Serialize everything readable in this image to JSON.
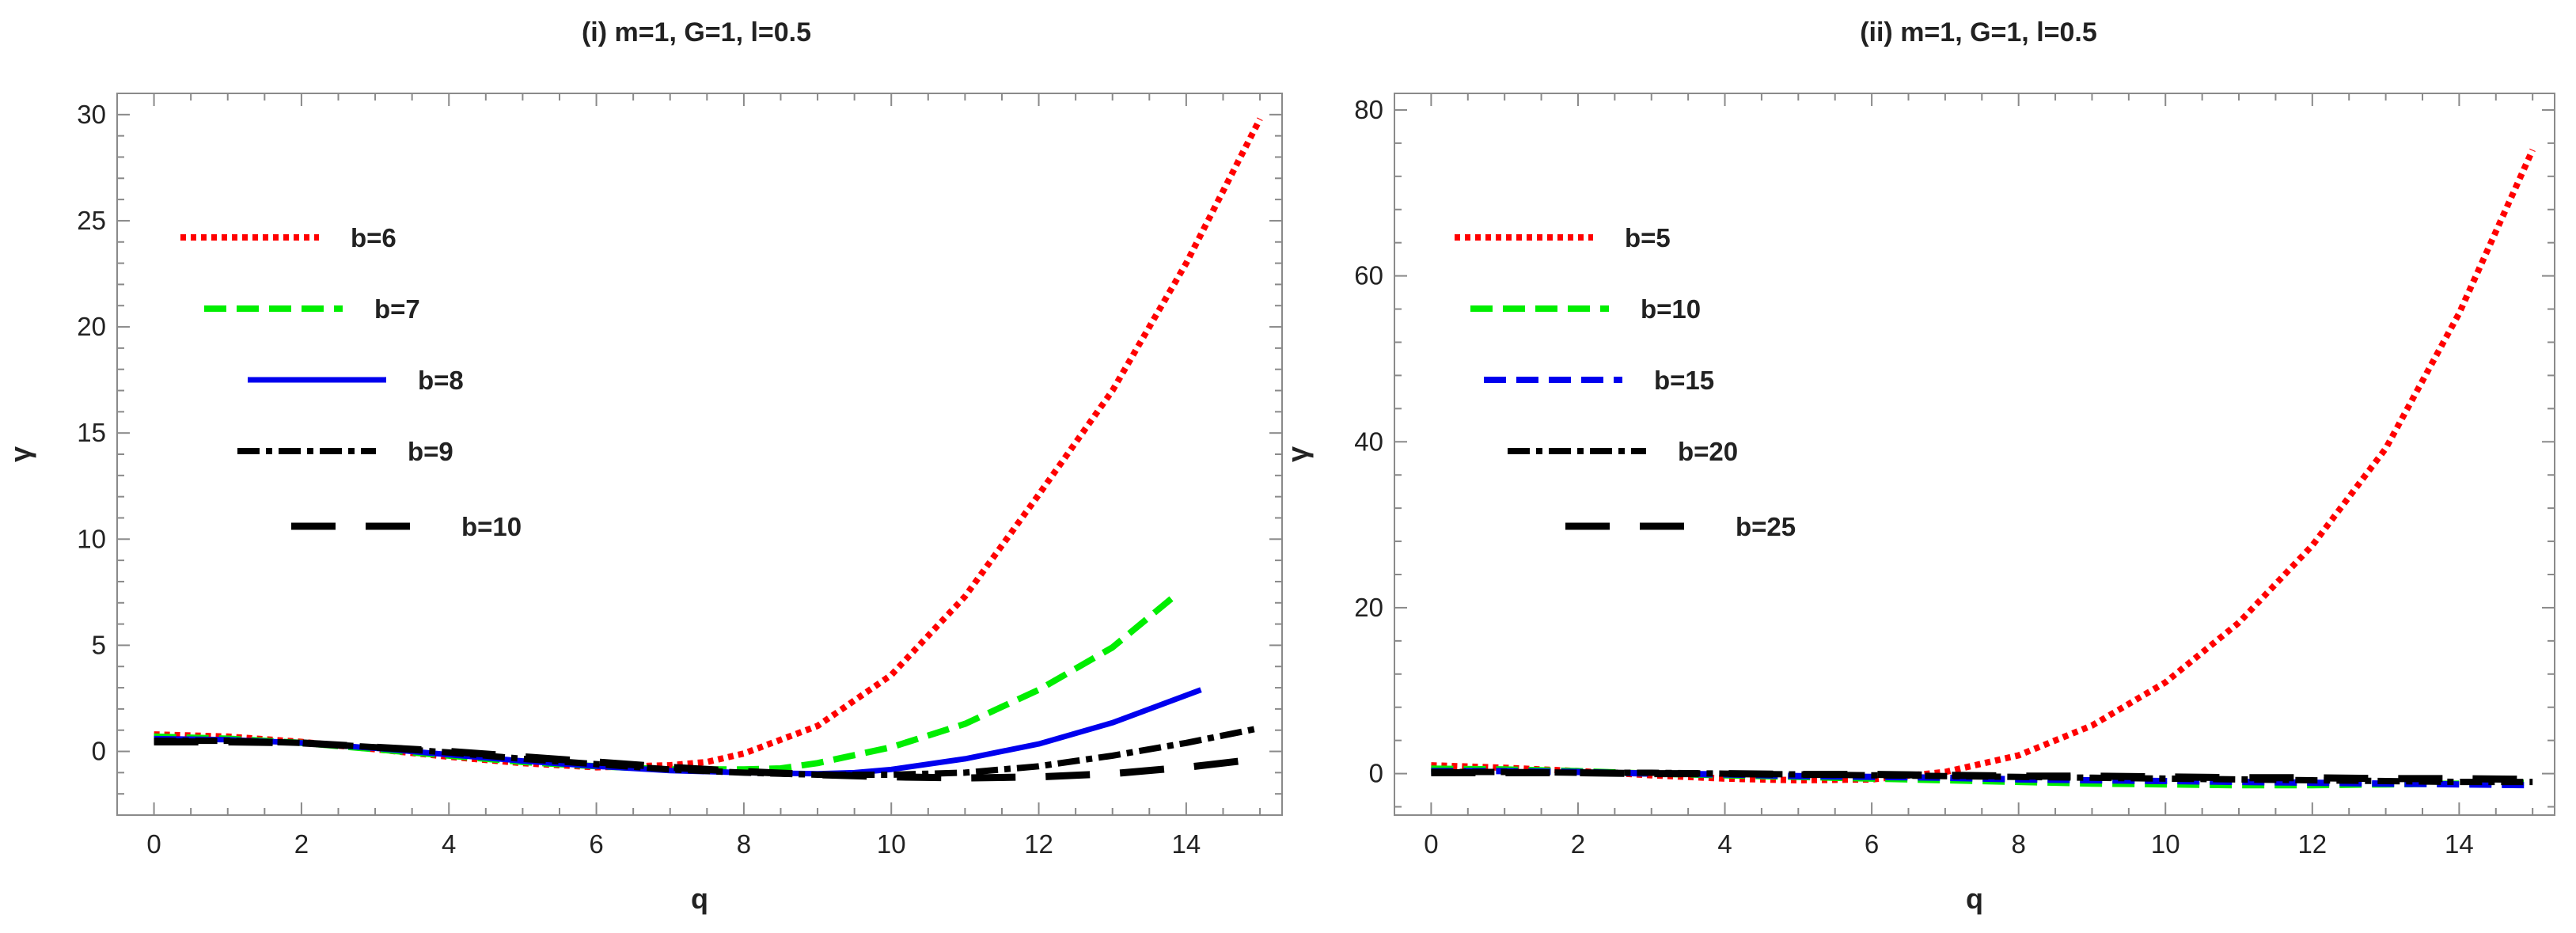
{
  "chart_data": [
    {
      "type": "line",
      "title": "(i) m=1, G=1, l=0.5",
      "xlabel": "q",
      "ylabel": "γ",
      "xlim": [
        -0.5,
        15.3
      ],
      "ylim": [
        -3,
        31
      ],
      "xticks": [
        0,
        2,
        4,
        6,
        8,
        10,
        12,
        14
      ],
      "yticks": [
        0,
        5,
        10,
        15,
        20,
        25,
        30
      ],
      "grid": false,
      "legend_position": "left",
      "series": [
        {
          "name": "b=6",
          "color": "#ff0000",
          "dash": "dotted",
          "x": [
            0,
            1,
            2,
            3,
            4,
            5,
            6,
            7,
            7.5,
            8,
            9,
            10,
            11,
            12,
            13,
            14,
            15
          ],
          "y": [
            0.8,
            0.7,
            0.45,
            0.1,
            -0.25,
            -0.55,
            -0.75,
            -0.65,
            -0.5,
            -0.1,
            1.2,
            3.6,
            7.3,
            12.1,
            17.0,
            23.0,
            29.8
          ]
        },
        {
          "name": "b=7",
          "color": "#00ee00",
          "dash": "dashed",
          "x": [
            0,
            1,
            2,
            3,
            4,
            5,
            6,
            7,
            8,
            8.5,
            9,
            10,
            11,
            12,
            13,
            13.8
          ],
          "y": [
            0.7,
            0.6,
            0.4,
            0.1,
            -0.2,
            -0.5,
            -0.7,
            -0.85,
            -0.85,
            -0.8,
            -0.55,
            0.2,
            1.3,
            2.9,
            4.9,
            7.2
          ]
        },
        {
          "name": "b=8",
          "color": "#0000ee",
          "dash": "solid",
          "x": [
            0,
            1,
            2,
            3,
            4,
            5,
            6,
            7,
            8,
            9,
            9.5,
            10,
            11,
            12,
            13,
            14.2
          ],
          "y": [
            0.6,
            0.55,
            0.4,
            0.15,
            -0.15,
            -0.45,
            -0.7,
            -0.9,
            -1.0,
            -1.05,
            -1.0,
            -0.85,
            -0.35,
            0.35,
            1.35,
            2.9
          ]
        },
        {
          "name": "b=9",
          "color": "#000000",
          "dash": "dashdot",
          "x": [
            0,
            1,
            2,
            3,
            4,
            5,
            6,
            7,
            8,
            9,
            10,
            11,
            12,
            13,
            14,
            15
          ],
          "y": [
            0.5,
            0.5,
            0.4,
            0.2,
            -0.05,
            -0.35,
            -0.6,
            -0.85,
            -1.0,
            -1.1,
            -1.1,
            -1.0,
            -0.7,
            -0.2,
            0.4,
            1.1
          ]
        },
        {
          "name": "b=10",
          "color": "#000000",
          "dash": "longdash",
          "x": [
            0,
            1,
            2,
            3,
            4,
            5,
            6,
            7,
            8,
            9,
            10,
            11,
            12,
            13,
            14,
            15
          ],
          "y": [
            0.45,
            0.45,
            0.4,
            0.2,
            0.0,
            -0.25,
            -0.5,
            -0.75,
            -0.95,
            -1.1,
            -1.2,
            -1.25,
            -1.2,
            -1.05,
            -0.75,
            -0.35
          ]
        }
      ]
    },
    {
      "type": "line",
      "title": "(ii) m=1, G=1, l=0.5",
      "xlabel": "q",
      "ylabel": "γ",
      "xlim": [
        -0.5,
        15.3
      ],
      "ylim": [
        -5,
        82
      ],
      "xticks": [
        0,
        2,
        4,
        6,
        8,
        10,
        12,
        14
      ],
      "yticks": [
        0,
        20,
        40,
        60,
        80
      ],
      "grid": false,
      "legend_position": "left",
      "series": [
        {
          "name": "b=5",
          "color": "#ff0000",
          "dash": "dotted",
          "x": [
            0,
            1,
            2,
            3,
            4,
            5,
            6,
            7,
            8,
            9,
            10,
            11,
            12,
            13,
            14,
            15
          ],
          "y": [
            1.0,
            0.7,
            0.3,
            -0.2,
            -0.6,
            -0.8,
            -0.7,
            0.2,
            2.2,
            5.8,
            11.0,
            18.2,
            27.5,
            39.2,
            55.5,
            75.2
          ]
        },
        {
          "name": "b=10",
          "color": "#00ee00",
          "dash": "dashed",
          "x": [
            0,
            1,
            2,
            3,
            4,
            5,
            6,
            7,
            8,
            9,
            10,
            11,
            12,
            13,
            14,
            15
          ],
          "y": [
            0.6,
            0.5,
            0.3,
            0.0,
            -0.2,
            -0.4,
            -0.6,
            -0.8,
            -1.0,
            -1.2,
            -1.3,
            -1.4,
            -1.4,
            -1.3,
            -1.2,
            -1.1
          ]
        },
        {
          "name": "b=15",
          "color": "#0000ee",
          "dash": "dashed",
          "x": [
            0,
            1,
            2,
            3,
            4,
            5,
            6,
            7,
            8,
            9,
            10,
            11,
            12,
            13,
            14,
            15
          ],
          "y": [
            0.3,
            0.3,
            0.2,
            0.0,
            -0.1,
            -0.3,
            -0.4,
            -0.5,
            -0.7,
            -0.8,
            -0.9,
            -1.0,
            -1.1,
            -1.2,
            -1.3,
            -1.4
          ]
        },
        {
          "name": "b=20",
          "color": "#000000",
          "dash": "dashdot",
          "x": [
            0,
            1,
            2,
            3,
            4,
            5,
            6,
            7,
            8,
            9,
            10,
            11,
            12,
            13,
            14,
            15
          ],
          "y": [
            0.2,
            0.2,
            0.1,
            0.1,
            0.0,
            -0.1,
            -0.2,
            -0.3,
            -0.4,
            -0.5,
            -0.6,
            -0.7,
            -0.8,
            -0.9,
            -1.0,
            -1.0
          ]
        },
        {
          "name": "b=25",
          "color": "#000000",
          "dash": "longdash",
          "x": [
            0,
            1,
            2,
            3,
            4,
            5,
            6,
            7,
            8,
            9,
            10,
            11,
            12,
            13,
            14,
            15
          ],
          "y": [
            0.1,
            0.1,
            0.1,
            0.0,
            0.0,
            -0.1,
            -0.1,
            -0.2,
            -0.3,
            -0.3,
            -0.4,
            -0.5,
            -0.5,
            -0.6,
            -0.6,
            -0.7
          ]
        }
      ]
    }
  ]
}
